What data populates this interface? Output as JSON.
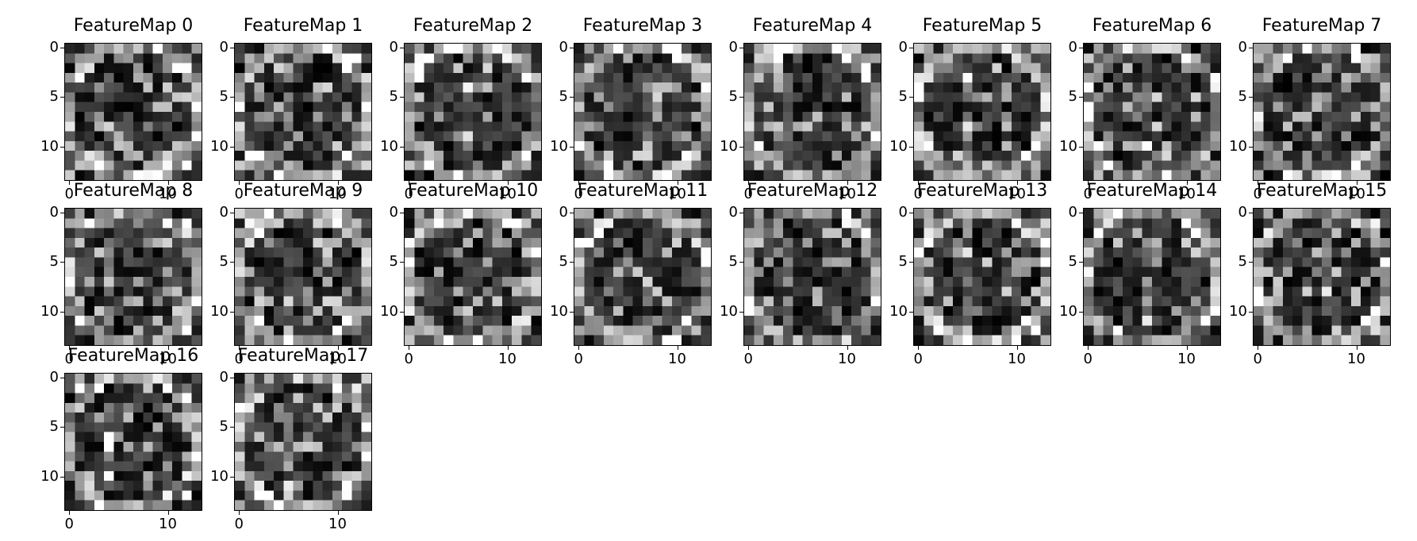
{
  "chart_data": {
    "type": "heatmap",
    "colormap": "gray",
    "grid": false,
    "rows": 14,
    "cols": 14,
    "xlim": [
      -0.5,
      13.5
    ],
    "ylim": [
      13.5,
      -0.5
    ],
    "xticks": [
      0,
      10
    ],
    "yticks": [
      0,
      5,
      10
    ],
    "panels": [
      {
        "title": "FeatureMap 0"
      },
      {
        "title": "FeatureMap 1"
      },
      {
        "title": "FeatureMap 2"
      },
      {
        "title": "FeatureMap 3"
      },
      {
        "title": "FeatureMap 4"
      },
      {
        "title": "FeatureMap 5"
      },
      {
        "title": "FeatureMap 6"
      },
      {
        "title": "FeatureMap 7"
      },
      {
        "title": "FeatureMap 8"
      },
      {
        "title": "FeatureMap 9"
      },
      {
        "title": "FeatureMap 10"
      },
      {
        "title": "FeatureMap 11"
      },
      {
        "title": "FeatureMap 12"
      },
      {
        "title": "FeatureMap 13"
      },
      {
        "title": "FeatureMap 14"
      },
      {
        "title": "FeatureMap 15"
      },
      {
        "title": "FeatureMap 16"
      },
      {
        "title": "FeatureMap 17"
      }
    ]
  }
}
